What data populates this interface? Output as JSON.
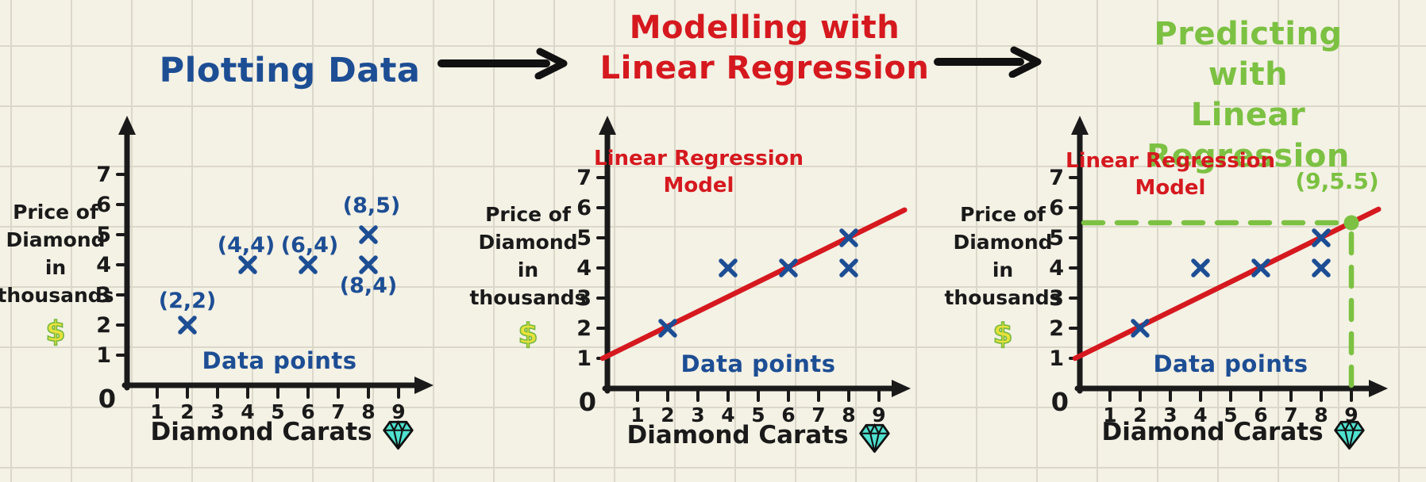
{
  "panels": [
    {
      "title": "Plotting Data",
      "title_color": "#1d4e94"
    },
    {
      "title": "Modelling with\nLinear Regression",
      "title_color": "#d5191f"
    },
    {
      "title": "Predicting with\nLinear Regression",
      "title_color": "#7cc142"
    }
  ],
  "shared": {
    "ylabel_lines": [
      "Price of",
      "Diamond",
      "in",
      "thousands"
    ],
    "dollar": "$",
    "xlabel": "Diamond Carats",
    "caption": "Data points",
    "origin_label": "0"
  },
  "icons": {
    "gem_icon": "diamond-gem",
    "dollar_icon": "dollar-sign",
    "arrow_icon": "arrow-right"
  },
  "colors": {
    "blue": "#1d4e94",
    "red": "#d5191f",
    "green": "#7cc142",
    "axis": "#1a1a1a",
    "gem_teal": "#4fe0cf",
    "dollar_yellow": "#e8e23c",
    "dollar_outline": "#76b93e",
    "background": "#f4f1e5",
    "grid": "#dbd8ca"
  },
  "chart_data": [
    {
      "type": "scatter",
      "title": "Plotting Data",
      "points": [
        [
          2,
          2
        ],
        [
          4,
          4
        ],
        [
          6,
          4
        ],
        [
          8,
          5
        ],
        [
          8,
          4
        ]
      ],
      "point_labels": [
        "(2,2)",
        "(4,4)",
        "(6,4)",
        "(8,5)",
        "(8,4)"
      ],
      "x_ticks": [
        1,
        2,
        3,
        4,
        5,
        6,
        7,
        8,
        9
      ],
      "y_ticks": [
        1,
        2,
        3,
        4,
        5,
        6,
        7
      ],
      "origin_label": "0",
      "xlabel": "Diamond Carats",
      "ylabel": "Price of Diamond in thousands $",
      "caption": "Data points",
      "xlim": [
        0,
        10
      ],
      "ylim": [
        0,
        8
      ],
      "grid": false,
      "marker": "x"
    },
    {
      "type": "scatter",
      "title": "Modelling with Linear Regression",
      "points": [
        [
          2,
          2
        ],
        [
          4,
          4
        ],
        [
          6,
          4
        ],
        [
          8,
          5
        ],
        [
          8,
          4
        ]
      ],
      "point_labels": null,
      "x_ticks": [
        1,
        2,
        3,
        4,
        5,
        6,
        7,
        8,
        9
      ],
      "y_ticks": [
        1,
        2,
        3,
        4,
        5,
        6,
        7
      ],
      "origin_label": "0",
      "xlabel": "Diamond Carats",
      "ylabel": "Price of Diamond in thousands $",
      "caption": "Data points",
      "annotation": "Linear Regression\nModel",
      "regression_line": {
        "slope": 0.5,
        "intercept": 1,
        "x_start": 0,
        "x_end": 9.85
      },
      "xlim": [
        0,
        10
      ],
      "ylim": [
        0,
        8
      ],
      "grid": false,
      "marker": "x"
    },
    {
      "type": "scatter",
      "title": "Predicting with Linear Regression",
      "points": [
        [
          2,
          2
        ],
        [
          4,
          4
        ],
        [
          6,
          4
        ],
        [
          8,
          5
        ],
        [
          8,
          4
        ]
      ],
      "point_labels": null,
      "x_ticks": [
        1,
        2,
        3,
        4,
        5,
        6,
        7,
        8,
        9
      ],
      "y_ticks": [
        1,
        2,
        3,
        4,
        5,
        6,
        7
      ],
      "origin_label": "0",
      "xlabel": "Diamond Carats",
      "ylabel": "Price of Diamond in thousands $",
      "caption": "Data points",
      "annotation": "Linear Regression\nModel",
      "regression_line": {
        "slope": 0.5,
        "intercept": 1,
        "x_start": 0,
        "x_end": 9.9
      },
      "prediction": {
        "x": 9,
        "y": 5.5,
        "label": "(9,5.5)"
      },
      "xlim": [
        0,
        10
      ],
      "ylim": [
        0,
        8
      ],
      "grid": false,
      "marker": "x"
    }
  ]
}
